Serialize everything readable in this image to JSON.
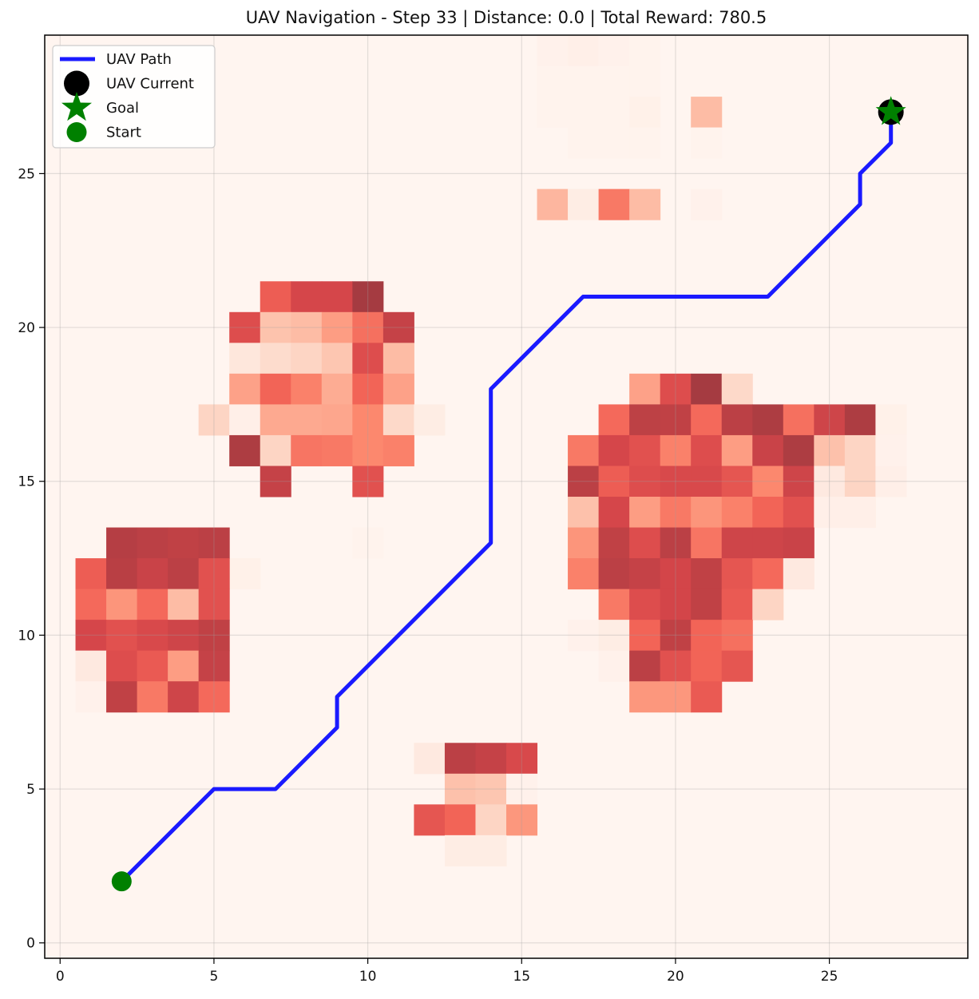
{
  "chart_data": {
    "type": "heatmap",
    "title": "UAV Navigation - Step 33 | Distance: 0.0 | Total Reward: 780.5",
    "xlabel": "",
    "ylabel": "",
    "xlim": [
      -0.5,
      29.5
    ],
    "ylim": [
      -0.5,
      29.5
    ],
    "x_ticks": [
      0,
      5,
      10,
      15,
      20,
      25
    ],
    "y_ticks": [
      0,
      5,
      10,
      15,
      20,
      25
    ],
    "grid": true,
    "legend_placement": "upper-left",
    "legend": [
      {
        "label": "UAV Path",
        "marker": "line",
        "color": "#1a1aff"
      },
      {
        "label": "UAV Current",
        "marker": "circle",
        "color": "#000000"
      },
      {
        "label": "Goal",
        "marker": "star",
        "color": "#008000"
      },
      {
        "label": "Start",
        "marker": "circle",
        "color": "#008000"
      }
    ],
    "background_value": 0.02,
    "risk_cells": [
      {
        "x": 16,
        "y": 29,
        "v": 0.04
      },
      {
        "x": 17,
        "y": 29,
        "v": 0.06
      },
      {
        "x": 18,
        "y": 29,
        "v": 0.04
      },
      {
        "x": 19,
        "y": 29,
        "v": 0.03
      },
      {
        "x": 16,
        "y": 28,
        "v": 0.03
      },
      {
        "x": 17,
        "y": 28,
        "v": 0.03
      },
      {
        "x": 18,
        "y": 28,
        "v": 0.03
      },
      {
        "x": 19,
        "y": 28,
        "v": 0.03
      },
      {
        "x": 16,
        "y": 27,
        "v": 0.03
      },
      {
        "x": 17,
        "y": 27,
        "v": 0.03
      },
      {
        "x": 18,
        "y": 27,
        "v": 0.03
      },
      {
        "x": 19,
        "y": 27,
        "v": 0.05
      },
      {
        "x": 21,
        "y": 27,
        "v": 0.3
      },
      {
        "x": 17,
        "y": 26,
        "v": 0.03
      },
      {
        "x": 18,
        "y": 26,
        "v": 0.03
      },
      {
        "x": 19,
        "y": 26,
        "v": 0.03
      },
      {
        "x": 21,
        "y": 26,
        "v": 0.03
      },
      {
        "x": 16,
        "y": 24,
        "v": 0.32
      },
      {
        "x": 17,
        "y": 24,
        "v": 0.08
      },
      {
        "x": 18,
        "y": 24,
        "v": 0.55
      },
      {
        "x": 19,
        "y": 24,
        "v": 0.3
      },
      {
        "x": 21,
        "y": 24,
        "v": 0.04
      },
      {
        "x": 7,
        "y": 21,
        "v": 0.65
      },
      {
        "x": 8,
        "y": 21,
        "v": 0.75
      },
      {
        "x": 9,
        "y": 21,
        "v": 0.75
      },
      {
        "x": 10,
        "y": 21,
        "v": 0.92
      },
      {
        "x": 6,
        "y": 20,
        "v": 0.72
      },
      {
        "x": 7,
        "y": 20,
        "v": 0.27
      },
      {
        "x": 8,
        "y": 20,
        "v": 0.3
      },
      {
        "x": 9,
        "y": 20,
        "v": 0.42
      },
      {
        "x": 10,
        "y": 20,
        "v": 0.58
      },
      {
        "x": 11,
        "y": 20,
        "v": 0.82
      },
      {
        "x": 6,
        "y": 19,
        "v": 0.12
      },
      {
        "x": 7,
        "y": 19,
        "v": 0.17
      },
      {
        "x": 8,
        "y": 19,
        "v": 0.2
      },
      {
        "x": 9,
        "y": 19,
        "v": 0.26
      },
      {
        "x": 10,
        "y": 19,
        "v": 0.72
      },
      {
        "x": 11,
        "y": 19,
        "v": 0.3
      },
      {
        "x": 6,
        "y": 18,
        "v": 0.4
      },
      {
        "x": 7,
        "y": 18,
        "v": 0.62
      },
      {
        "x": 8,
        "y": 18,
        "v": 0.52
      },
      {
        "x": 9,
        "y": 18,
        "v": 0.36
      },
      {
        "x": 10,
        "y": 18,
        "v": 0.62
      },
      {
        "x": 11,
        "y": 18,
        "v": 0.4
      },
      {
        "x": 5,
        "y": 17,
        "v": 0.2
      },
      {
        "x": 6,
        "y": 17,
        "v": 0.06
      },
      {
        "x": 7,
        "y": 17,
        "v": 0.37
      },
      {
        "x": 8,
        "y": 17,
        "v": 0.37
      },
      {
        "x": 9,
        "y": 17,
        "v": 0.38
      },
      {
        "x": 10,
        "y": 17,
        "v": 0.5
      },
      {
        "x": 11,
        "y": 17,
        "v": 0.18
      },
      {
        "x": 12,
        "y": 17,
        "v": 0.08
      },
      {
        "x": 6,
        "y": 16,
        "v": 0.9
      },
      {
        "x": 7,
        "y": 16,
        "v": 0.2
      },
      {
        "x": 8,
        "y": 16,
        "v": 0.56
      },
      {
        "x": 9,
        "y": 16,
        "v": 0.55
      },
      {
        "x": 10,
        "y": 16,
        "v": 0.5
      },
      {
        "x": 11,
        "y": 16,
        "v": 0.52
      },
      {
        "x": 7,
        "y": 15,
        "v": 0.82
      },
      {
        "x": 10,
        "y": 15,
        "v": 0.7
      },
      {
        "x": 10,
        "y": 13,
        "v": 0.03
      },
      {
        "x": 6,
        "y": 12,
        "v": 0.05
      },
      {
        "x": 2,
        "y": 13,
        "v": 0.88
      },
      {
        "x": 3,
        "y": 13,
        "v": 0.86
      },
      {
        "x": 4,
        "y": 13,
        "v": 0.84
      },
      {
        "x": 5,
        "y": 13,
        "v": 0.86
      },
      {
        "x": 1,
        "y": 12,
        "v": 0.65
      },
      {
        "x": 2,
        "y": 12,
        "v": 0.87
      },
      {
        "x": 3,
        "y": 12,
        "v": 0.8
      },
      {
        "x": 4,
        "y": 12,
        "v": 0.86
      },
      {
        "x": 5,
        "y": 12,
        "v": 0.7
      },
      {
        "x": 1,
        "y": 11,
        "v": 0.6
      },
      {
        "x": 2,
        "y": 11,
        "v": 0.45
      },
      {
        "x": 3,
        "y": 11,
        "v": 0.6
      },
      {
        "x": 4,
        "y": 11,
        "v": 0.3
      },
      {
        "x": 5,
        "y": 11,
        "v": 0.7
      },
      {
        "x": 1,
        "y": 10,
        "v": 0.75
      },
      {
        "x": 2,
        "y": 10,
        "v": 0.7
      },
      {
        "x": 3,
        "y": 10,
        "v": 0.74
      },
      {
        "x": 4,
        "y": 10,
        "v": 0.78
      },
      {
        "x": 5,
        "y": 10,
        "v": 0.84
      },
      {
        "x": 1,
        "y": 9,
        "v": 0.1
      },
      {
        "x": 2,
        "y": 9,
        "v": 0.72
      },
      {
        "x": 3,
        "y": 9,
        "v": 0.66
      },
      {
        "x": 4,
        "y": 9,
        "v": 0.42
      },
      {
        "x": 5,
        "y": 9,
        "v": 0.82
      },
      {
        "x": 1,
        "y": 8,
        "v": 0.04
      },
      {
        "x": 2,
        "y": 8,
        "v": 0.84
      },
      {
        "x": 3,
        "y": 8,
        "v": 0.55
      },
      {
        "x": 4,
        "y": 8,
        "v": 0.78
      },
      {
        "x": 5,
        "y": 8,
        "v": 0.6
      },
      {
        "x": 19,
        "y": 18,
        "v": 0.4
      },
      {
        "x": 20,
        "y": 18,
        "v": 0.72
      },
      {
        "x": 21,
        "y": 18,
        "v": 0.92
      },
      {
        "x": 22,
        "y": 18,
        "v": 0.18
      },
      {
        "x": 18,
        "y": 17,
        "v": 0.6
      },
      {
        "x": 19,
        "y": 17,
        "v": 0.85
      },
      {
        "x": 20,
        "y": 17,
        "v": 0.84
      },
      {
        "x": 21,
        "y": 17,
        "v": 0.6
      },
      {
        "x": 22,
        "y": 17,
        "v": 0.86
      },
      {
        "x": 23,
        "y": 17,
        "v": 0.9
      },
      {
        "x": 24,
        "y": 17,
        "v": 0.58
      },
      {
        "x": 25,
        "y": 17,
        "v": 0.78
      },
      {
        "x": 26,
        "y": 17,
        "v": 0.9
      },
      {
        "x": 27,
        "y": 17,
        "v": 0.05
      },
      {
        "x": 17,
        "y": 16,
        "v": 0.55
      },
      {
        "x": 18,
        "y": 16,
        "v": 0.75
      },
      {
        "x": 19,
        "y": 16,
        "v": 0.7
      },
      {
        "x": 20,
        "y": 16,
        "v": 0.52
      },
      {
        "x": 21,
        "y": 16,
        "v": 0.72
      },
      {
        "x": 22,
        "y": 16,
        "v": 0.42
      },
      {
        "x": 23,
        "y": 16,
        "v": 0.8
      },
      {
        "x": 24,
        "y": 16,
        "v": 0.9
      },
      {
        "x": 25,
        "y": 16,
        "v": 0.28
      },
      {
        "x": 26,
        "y": 16,
        "v": 0.2
      },
      {
        "x": 27,
        "y": 16,
        "v": 0.04
      },
      {
        "x": 17,
        "y": 15,
        "v": 0.86
      },
      {
        "x": 18,
        "y": 15,
        "v": 0.65
      },
      {
        "x": 19,
        "y": 15,
        "v": 0.72
      },
      {
        "x": 20,
        "y": 15,
        "v": 0.74
      },
      {
        "x": 21,
        "y": 15,
        "v": 0.74
      },
      {
        "x": 22,
        "y": 15,
        "v": 0.68
      },
      {
        "x": 23,
        "y": 15,
        "v": 0.5
      },
      {
        "x": 24,
        "y": 15,
        "v": 0.78
      },
      {
        "x": 25,
        "y": 15,
        "v": 0.1
      },
      {
        "x": 26,
        "y": 15,
        "v": 0.2
      },
      {
        "x": 27,
        "y": 15,
        "v": 0.06
      },
      {
        "x": 17,
        "y": 14,
        "v": 0.28
      },
      {
        "x": 18,
        "y": 14,
        "v": 0.75
      },
      {
        "x": 19,
        "y": 14,
        "v": 0.42
      },
      {
        "x": 20,
        "y": 14,
        "v": 0.55
      },
      {
        "x": 21,
        "y": 14,
        "v": 0.45
      },
      {
        "x": 22,
        "y": 14,
        "v": 0.52
      },
      {
        "x": 23,
        "y": 14,
        "v": 0.62
      },
      {
        "x": 24,
        "y": 14,
        "v": 0.7
      },
      {
        "x": 25,
        "y": 14,
        "v": 0.06
      },
      {
        "x": 26,
        "y": 14,
        "v": 0.06
      },
      {
        "x": 17,
        "y": 13,
        "v": 0.45
      },
      {
        "x": 18,
        "y": 13,
        "v": 0.84
      },
      {
        "x": 19,
        "y": 13,
        "v": 0.72
      },
      {
        "x": 20,
        "y": 13,
        "v": 0.86
      },
      {
        "x": 21,
        "y": 13,
        "v": 0.56
      },
      {
        "x": 22,
        "y": 13,
        "v": 0.78
      },
      {
        "x": 23,
        "y": 13,
        "v": 0.78
      },
      {
        "x": 24,
        "y": 13,
        "v": 0.8
      },
      {
        "x": 17,
        "y": 12,
        "v": 0.52
      },
      {
        "x": 18,
        "y": 12,
        "v": 0.86
      },
      {
        "x": 19,
        "y": 12,
        "v": 0.82
      },
      {
        "x": 20,
        "y": 12,
        "v": 0.76
      },
      {
        "x": 21,
        "y": 12,
        "v": 0.84
      },
      {
        "x": 22,
        "y": 12,
        "v": 0.68
      },
      {
        "x": 23,
        "y": 12,
        "v": 0.6
      },
      {
        "x": 24,
        "y": 12,
        "v": 0.1
      },
      {
        "x": 18,
        "y": 11,
        "v": 0.55
      },
      {
        "x": 19,
        "y": 11,
        "v": 0.72
      },
      {
        "x": 20,
        "y": 11,
        "v": 0.76
      },
      {
        "x": 21,
        "y": 11,
        "v": 0.84
      },
      {
        "x": 22,
        "y": 11,
        "v": 0.66
      },
      {
        "x": 23,
        "y": 11,
        "v": 0.2
      },
      {
        "x": 17,
        "y": 10,
        "v": 0.04
      },
      {
        "x": 18,
        "y": 10,
        "v": 0.08
      },
      {
        "x": 19,
        "y": 10,
        "v": 0.62
      },
      {
        "x": 20,
        "y": 10,
        "v": 0.84
      },
      {
        "x": 21,
        "y": 10,
        "v": 0.62
      },
      {
        "x": 22,
        "y": 10,
        "v": 0.58
      },
      {
        "x": 18,
        "y": 9,
        "v": 0.04
      },
      {
        "x": 19,
        "y": 9,
        "v": 0.86
      },
      {
        "x": 20,
        "y": 9,
        "v": 0.7
      },
      {
        "x": 21,
        "y": 9,
        "v": 0.62
      },
      {
        "x": 22,
        "y": 9,
        "v": 0.68
      },
      {
        "x": 19,
        "y": 8,
        "v": 0.44
      },
      {
        "x": 20,
        "y": 8,
        "v": 0.44
      },
      {
        "x": 21,
        "y": 8,
        "v": 0.66
      },
      {
        "x": 12,
        "y": 6,
        "v": 0.1
      },
      {
        "x": 13,
        "y": 6,
        "v": 0.86
      },
      {
        "x": 14,
        "y": 6,
        "v": 0.82
      },
      {
        "x": 15,
        "y": 6,
        "v": 0.74
      },
      {
        "x": 13,
        "y": 5,
        "v": 0.28
      },
      {
        "x": 14,
        "y": 5,
        "v": 0.26
      },
      {
        "x": 15,
        "y": 5,
        "v": 0.04
      },
      {
        "x": 12,
        "y": 4,
        "v": 0.68
      },
      {
        "x": 13,
        "y": 4,
        "v": 0.62
      },
      {
        "x": 14,
        "y": 4,
        "v": 0.2
      },
      {
        "x": 15,
        "y": 4,
        "v": 0.44
      },
      {
        "x": 13,
        "y": 3,
        "v": 0.08
      },
      {
        "x": 14,
        "y": 3,
        "v": 0.08
      }
    ],
    "path": {
      "x": [
        2,
        5,
        7,
        9,
        9,
        14,
        14,
        17,
        23,
        26,
        26,
        27,
        27
      ],
      "y": [
        2,
        5,
        5,
        7,
        8,
        13,
        18,
        21,
        21,
        24,
        25,
        26,
        27
      ]
    },
    "start": {
      "x": 2,
      "y": 2
    },
    "goal": {
      "x": 27,
      "y": 27
    },
    "uav_current": {
      "x": 27,
      "y": 27
    }
  }
}
